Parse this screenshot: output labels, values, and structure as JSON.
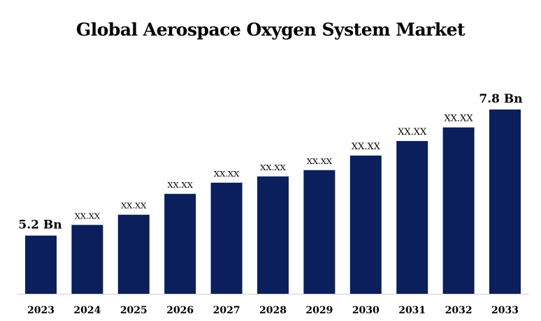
{
  "chart_data": {
    "type": "bar",
    "title": "Global Aerospace Oxygen System Market",
    "categories": [
      "2023",
      "2024",
      "2025",
      "2026",
      "2027",
      "2028",
      "2029",
      "2030",
      "2031",
      "2032",
      "2033"
    ],
    "values": [
      5.2,
      5.42,
      5.63,
      6.06,
      6.29,
      6.42,
      6.55,
      6.85,
      7.15,
      7.43,
      7.8
    ],
    "data_labels": [
      "5.2 Bn",
      "XX.XX",
      "XX.XX",
      "XX.XX",
      "XX.XX",
      "XX.XX",
      "XX.XX",
      "XX.XX",
      "XX.XX",
      "XX.XX",
      "7.8 Bn"
    ],
    "xlabel": "",
    "ylabel": "",
    "ylim": [
      4.0,
      8.0
    ],
    "grid": false,
    "legend": "none",
    "bar_color": "#0a1f5c",
    "axis_color": "#cfcfcf"
  }
}
